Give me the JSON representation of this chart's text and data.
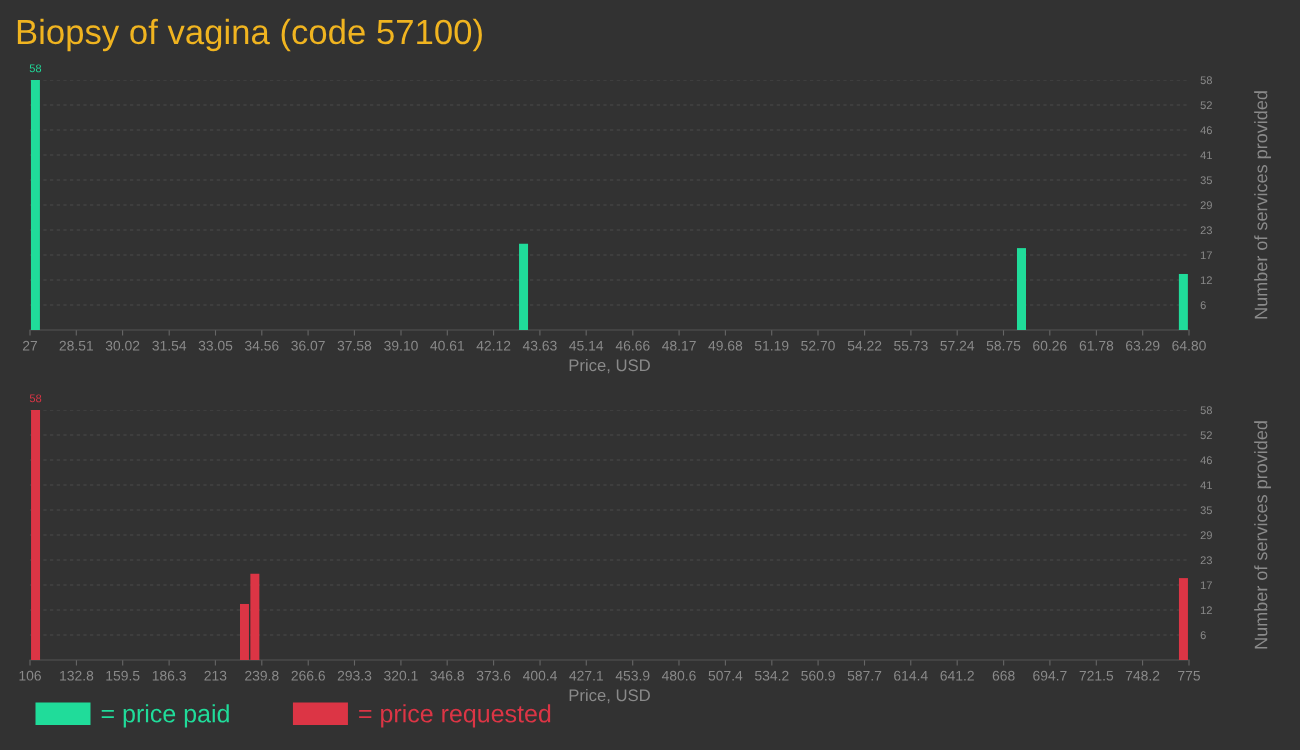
{
  "chart_data": [
    {
      "type": "bar",
      "title": "Biopsy of vagina (code 57100)",
      "xlabel": "Price, USD",
      "ylabel": "Number of services provided",
      "series": [
        {
          "name": "= price paid",
          "color": "#20dc9a",
          "x": [
            27.03,
            42.95,
            59.19,
            64.47
          ],
          "values": [
            58,
            20,
            19,
            13
          ],
          "value_labels": [
            "58",
            null,
            null,
            null
          ]
        }
      ],
      "xlim": [
        27,
        64.8
      ],
      "xticks": [
        27,
        28.51,
        30.02,
        31.54,
        33.05,
        34.56,
        36.07,
        37.58,
        {
          "value": 39.1,
          "label": "39.10"
        },
        40.61,
        42.12,
        43.63,
        45.14,
        46.66,
        48.17,
        49.68,
        51.19,
        {
          "value": 52.7,
          "label": "52.70"
        },
        54.22,
        55.73,
        57.24,
        58.75,
        60.26,
        61.78,
        63.29,
        {
          "value": 64.8,
          "label": "64.80"
        }
      ],
      "ylim": [
        0,
        58
      ],
      "yticks": [
        {
          "value": 5.8,
          "label": "6"
        },
        {
          "value": 11.6,
          "label": "12"
        },
        {
          "value": 17.4,
          "label": "17"
        },
        {
          "value": 23.2,
          "label": "23"
        },
        29,
        {
          "value": 34.8,
          "label": "35"
        },
        {
          "value": 40.6,
          "label": "41"
        },
        {
          "value": 46.4,
          "label": "46"
        },
        {
          "value": 52.2,
          "label": "52"
        },
        58
      ],
      "grid": "y",
      "legend": "bottom left"
    },
    {
      "type": "bar",
      "xlabel": "Price, USD",
      "ylabel": "Number of services provided",
      "series": [
        {
          "name": "= price requested",
          "color": "#dc3545",
          "x": [
            106.6,
            227.2,
            233.2,
            769.2
          ],
          "values": [
            58,
            13,
            20,
            19
          ],
          "value_labels": [
            "58",
            null,
            null,
            null
          ]
        }
      ],
      "xlim": [
        106,
        775
      ],
      "xticks": [
        106,
        132.8,
        159.5,
        186.3,
        213,
        239.8,
        266.6,
        293.3,
        320.1,
        346.8,
        373.6,
        400.4,
        427.1,
        453.9,
        480.6,
        507.4,
        534.2,
        560.9,
        587.7,
        614.4,
        641.2,
        668,
        694.7,
        721.5,
        748.2,
        775
      ],
      "ylim": [
        0,
        58
      ],
      "yticks": [
        {
          "value": 5.8,
          "label": "6"
        },
        {
          "value": 11.6,
          "label": "12"
        },
        {
          "value": 17.4,
          "label": "17"
        },
        {
          "value": 23.2,
          "label": "23"
        },
        29,
        {
          "value": 34.8,
          "label": "35"
        },
        {
          "value": 40.6,
          "label": "41"
        },
        {
          "value": 46.4,
          "label": "46"
        },
        {
          "value": 52.2,
          "label": "52"
        },
        58
      ],
      "grid": "y",
      "legend": "bottom left"
    }
  ]
}
